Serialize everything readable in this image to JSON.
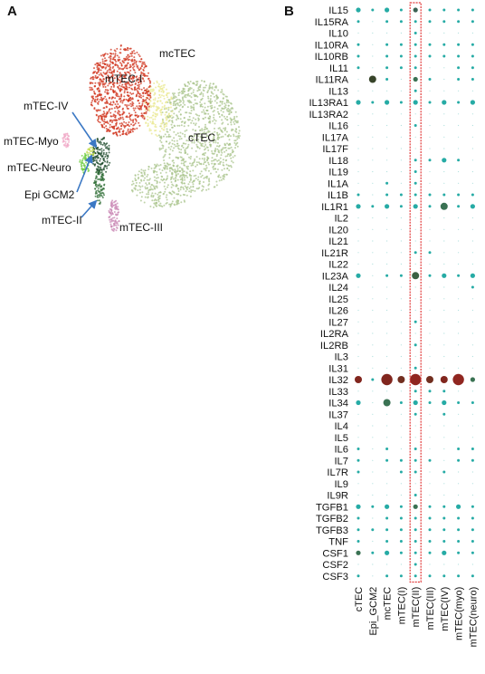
{
  "panels": {
    "a": "A",
    "b": "B"
  },
  "umap": {
    "labels": {
      "mctec": "mcTEC",
      "mtec_i": "mTEC-I",
      "mtec_iv": "mTEC-IV",
      "ctec": "cTEC",
      "mtec_myo": "mTEC-Myo",
      "mtec_neuro": "mTEC-Neuro",
      "epi_gcm2": "Epi GCM2",
      "mtec_ii": "mTEC-II",
      "mtec_iii": "mTEC-III"
    },
    "colors": {
      "mtec_i": "#d0341e",
      "mctec": "#e9e890",
      "ctec": "#a9c48c",
      "mtec_myo": "#f0a7c6",
      "mtec_neuro": "#6ccc3e",
      "epi_gcm2": "#c0d94a",
      "mtec_ii": "#2f6e36",
      "mtec_iii": "#c987b4",
      "mtec_iv": "#1c4a2a",
      "arrow": "#3b78c4"
    }
  },
  "chart_data": {
    "type": "dot",
    "genes": [
      "IL15",
      "IL15RA",
      "IL10",
      "IL10RA",
      "IL10RB",
      "IL11",
      "IL11RA",
      "IL13",
      "IL13RA1",
      "IL13RA2",
      "IL16",
      "IL17A",
      "IL17F",
      "IL18",
      "IL19",
      "IL1A",
      "IL1B",
      "IL1R1",
      "IL2",
      "IL20",
      "IL21",
      "IL21R",
      "IL22",
      "IL23A",
      "IL24",
      "IL25",
      "IL26",
      "IL27",
      "IL2RA",
      "IL2RB",
      "IL3",
      "IL31",
      "IL32",
      "IL33",
      "IL34",
      "IL37",
      "IL4",
      "IL5",
      "IL6",
      "IL7",
      "IL7R",
      "IL9",
      "IL9R",
      "TGFB1",
      "TGFB2",
      "TGFB3",
      "TNF",
      "CSF1",
      "CSF2",
      "CSF3"
    ],
    "clusters": [
      "cTEC",
      "Epi_GCM2",
      "mcTEC",
      "mTEC(I)",
      "mTEC(II)",
      "mTEC(III)",
      "mTEC(IV)",
      "mTEC(myo)",
      "mTEC(neuro)"
    ],
    "highlighted_cluster": "mTEC(II)",
    "size_levels": [
      0,
      1,
      2,
      3,
      4
    ],
    "dot_size": [
      [
        2,
        1,
        2,
        1,
        2,
        1,
        1,
        1,
        1
      ],
      [
        1,
        0,
        1,
        1,
        1,
        1,
        1,
        1,
        1
      ],
      [
        0,
        0,
        0,
        0,
        1,
        0,
        0,
        0,
        0
      ],
      [
        1,
        0,
        1,
        1,
        1,
        1,
        1,
        1,
        1
      ],
      [
        1,
        0,
        1,
        1,
        1,
        1,
        1,
        1,
        1
      ],
      [
        1,
        0,
        1,
        1,
        1,
        0,
        0,
        1,
        1
      ],
      [
        0,
        3,
        1,
        0,
        2,
        1,
        0,
        1,
        1
      ],
      [
        0,
        0,
        0,
        0,
        1,
        0,
        0,
        0,
        0
      ],
      [
        2,
        1,
        2,
        1,
        2,
        1,
        2,
        1,
        2
      ],
      [
        0,
        0,
        0,
        0,
        0,
        0,
        0,
        0,
        0
      ],
      [
        0,
        0,
        0,
        0,
        1,
        0,
        0,
        0,
        0
      ],
      [
        0,
        0,
        0,
        0,
        0,
        0,
        0,
        0,
        0
      ],
      [
        0,
        0,
        0,
        0,
        0,
        0,
        0,
        0,
        0
      ],
      [
        0,
        0,
        0,
        0,
        1,
        1,
        2,
        1,
        0
      ],
      [
        0,
        0,
        0,
        0,
        1,
        0,
        0,
        0,
        0
      ],
      [
        0,
        0,
        1,
        0,
        1,
        0,
        0,
        0,
        0
      ],
      [
        1,
        0,
        1,
        1,
        1,
        1,
        1,
        1,
        1
      ],
      [
        2,
        1,
        2,
        1,
        2,
        1,
        3,
        1,
        2
      ],
      [
        0,
        0,
        0,
        0,
        0,
        0,
        0,
        0,
        0
      ],
      [
        0,
        0,
        0,
        0,
        0,
        0,
        0,
        0,
        0
      ],
      [
        0,
        0,
        0,
        0,
        0,
        0,
        0,
        0,
        0
      ],
      [
        0,
        0,
        0,
        0,
        1,
        1,
        0,
        0,
        0
      ],
      [
        0,
        0,
        0,
        0,
        0,
        0,
        0,
        0,
        0
      ],
      [
        2,
        0,
        1,
        1,
        3,
        1,
        2,
        1,
        2
      ],
      [
        0,
        0,
        0,
        0,
        0,
        0,
        0,
        0,
        1
      ],
      [
        0,
        0,
        0,
        0,
        0,
        0,
        0,
        0,
        0
      ],
      [
        0,
        0,
        0,
        0,
        0,
        0,
        0,
        0,
        0
      ],
      [
        0,
        0,
        0,
        0,
        1,
        0,
        0,
        0,
        0
      ],
      [
        0,
        0,
        0,
        0,
        0,
        0,
        0,
        0,
        0
      ],
      [
        0,
        0,
        0,
        0,
        1,
        0,
        0,
        0,
        0
      ],
      [
        0,
        0,
        0,
        0,
        0,
        0,
        0,
        0,
        0
      ],
      [
        0,
        0,
        0,
        0,
        1,
        0,
        0,
        0,
        0
      ],
      [
        3,
        1,
        4,
        3,
        4,
        3,
        3,
        4,
        2
      ],
      [
        0,
        0,
        0,
        0,
        1,
        1,
        1,
        0,
        0
      ],
      [
        2,
        0,
        3,
        1,
        2,
        1,
        2,
        1,
        1
      ],
      [
        0,
        0,
        0,
        0,
        1,
        0,
        1,
        0,
        0
      ],
      [
        0,
        0,
        0,
        0,
        0,
        0,
        0,
        0,
        0
      ],
      [
        0,
        0,
        0,
        0,
        0,
        0,
        0,
        0,
        0
      ],
      [
        1,
        0,
        1,
        0,
        1,
        0,
        0,
        1,
        1
      ],
      [
        1,
        0,
        1,
        1,
        1,
        1,
        0,
        1,
        1
      ],
      [
        1,
        0,
        0,
        1,
        1,
        0,
        1,
        0,
        0
      ],
      [
        0,
        0,
        0,
        0,
        0,
        0,
        0,
        0,
        0
      ],
      [
        0,
        0,
        0,
        0,
        1,
        0,
        0,
        0,
        0
      ],
      [
        2,
        1,
        2,
        1,
        2,
        1,
        1,
        2,
        1
      ],
      [
        1,
        0,
        1,
        1,
        1,
        1,
        1,
        1,
        1
      ],
      [
        1,
        1,
        1,
        1,
        1,
        1,
        1,
        1,
        1
      ],
      [
        1,
        0,
        1,
        1,
        1,
        1,
        1,
        1,
        1
      ],
      [
        2,
        1,
        2,
        1,
        1,
        1,
        2,
        1,
        1
      ],
      [
        0,
        0,
        0,
        0,
        1,
        0,
        0,
        0,
        0
      ],
      [
        1,
        0,
        1,
        1,
        1,
        1,
        1,
        1,
        1
      ]
    ],
    "dot_color": [
      [
        "#1aa7a0",
        "#1aa7a0",
        "#1aa7a0",
        "#1aa7a0",
        "#2f5a4a",
        "#1aa7a0",
        "#1aa7a0",
        "#1aa7a0",
        "#1aa7a0"
      ],
      [
        "#1aa7a0",
        "#1aa7a0",
        "#1aa7a0",
        "#1aa7a0",
        "#1aa7a0",
        "#1aa7a0",
        "#1aa7a0",
        "#1aa7a0",
        "#1aa7a0"
      ],
      [
        "#1aa7a0",
        "#1aa7a0",
        "#1aa7a0",
        "#1aa7a0",
        "#1aa7a0",
        "#1aa7a0",
        "#1aa7a0",
        "#1aa7a0",
        "#1aa7a0"
      ],
      [
        "#1aa7a0",
        "#1aa7a0",
        "#1aa7a0",
        "#1aa7a0",
        "#1aa7a0",
        "#1aa7a0",
        "#1aa7a0",
        "#1aa7a0",
        "#1aa7a0"
      ],
      [
        "#1aa7a0",
        "#1aa7a0",
        "#1aa7a0",
        "#1aa7a0",
        "#1aa7a0",
        "#1aa7a0",
        "#1aa7a0",
        "#1aa7a0",
        "#1aa7a0"
      ],
      [
        "#1aa7a0",
        "#1aa7a0",
        "#1aa7a0",
        "#1aa7a0",
        "#1aa7a0",
        "#1aa7a0",
        "#1aa7a0",
        "#1aa7a0",
        "#1aa7a0"
      ],
      [
        "#1aa7a0",
        "#2c3a1e",
        "#1aa7a0",
        "#1aa7a0",
        "#2f6a4a",
        "#1aa7a0",
        "#1aa7a0",
        "#1aa7a0",
        "#1aa7a0"
      ],
      [
        "#1aa7a0",
        "#1aa7a0",
        "#1aa7a0",
        "#1aa7a0",
        "#1aa7a0",
        "#1aa7a0",
        "#1aa7a0",
        "#1aa7a0",
        "#1aa7a0"
      ],
      [
        "#1aa7a0",
        "#1aa7a0",
        "#1aa7a0",
        "#1aa7a0",
        "#1aa7a0",
        "#1aa7a0",
        "#1aa7a0",
        "#1aa7a0",
        "#1aa7a0"
      ],
      [
        "#1aa7a0",
        "#1aa7a0",
        "#1aa7a0",
        "#1aa7a0",
        "#1aa7a0",
        "#1aa7a0",
        "#1aa7a0",
        "#1aa7a0",
        "#1aa7a0"
      ],
      [
        "#1aa7a0",
        "#1aa7a0",
        "#1aa7a0",
        "#1aa7a0",
        "#1aa7a0",
        "#1aa7a0",
        "#1aa7a0",
        "#1aa7a0",
        "#1aa7a0"
      ],
      [
        "#1aa7a0",
        "#1aa7a0",
        "#1aa7a0",
        "#1aa7a0",
        "#1aa7a0",
        "#1aa7a0",
        "#1aa7a0",
        "#1aa7a0",
        "#1aa7a0"
      ],
      [
        "#1aa7a0",
        "#1aa7a0",
        "#1aa7a0",
        "#1aa7a0",
        "#1aa7a0",
        "#1aa7a0",
        "#1aa7a0",
        "#1aa7a0",
        "#1aa7a0"
      ],
      [
        "#1aa7a0",
        "#1aa7a0",
        "#1aa7a0",
        "#1aa7a0",
        "#1aa7a0",
        "#1aa7a0",
        "#1aa7a0",
        "#1aa7a0",
        "#1aa7a0"
      ],
      [
        "#1aa7a0",
        "#1aa7a0",
        "#1aa7a0",
        "#1aa7a0",
        "#1aa7a0",
        "#1aa7a0",
        "#1aa7a0",
        "#1aa7a0",
        "#1aa7a0"
      ],
      [
        "#1aa7a0",
        "#1aa7a0",
        "#1aa7a0",
        "#1aa7a0",
        "#1aa7a0",
        "#1aa7a0",
        "#1aa7a0",
        "#1aa7a0",
        "#1aa7a0"
      ],
      [
        "#1aa7a0",
        "#1aa7a0",
        "#1aa7a0",
        "#1aa7a0",
        "#1aa7a0",
        "#1aa7a0",
        "#1aa7a0",
        "#1aa7a0",
        "#1aa7a0"
      ],
      [
        "#1aa7a0",
        "#1aa7a0",
        "#1aa7a0",
        "#1aa7a0",
        "#1aa7a0",
        "#1aa7a0",
        "#2f6a4a",
        "#1aa7a0",
        "#1aa7a0"
      ],
      [
        "#1aa7a0",
        "#1aa7a0",
        "#1aa7a0",
        "#1aa7a0",
        "#1aa7a0",
        "#1aa7a0",
        "#1aa7a0",
        "#1aa7a0",
        "#1aa7a0"
      ],
      [
        "#1aa7a0",
        "#1aa7a0",
        "#1aa7a0",
        "#1aa7a0",
        "#1aa7a0",
        "#1aa7a0",
        "#1aa7a0",
        "#1aa7a0",
        "#1aa7a0"
      ],
      [
        "#1aa7a0",
        "#1aa7a0",
        "#1aa7a0",
        "#1aa7a0",
        "#1aa7a0",
        "#1aa7a0",
        "#1aa7a0",
        "#1aa7a0",
        "#1aa7a0"
      ],
      [
        "#1aa7a0",
        "#1aa7a0",
        "#1aa7a0",
        "#1aa7a0",
        "#1aa7a0",
        "#1aa7a0",
        "#1aa7a0",
        "#1aa7a0",
        "#1aa7a0"
      ],
      [
        "#1aa7a0",
        "#1aa7a0",
        "#1aa7a0",
        "#1aa7a0",
        "#1aa7a0",
        "#1aa7a0",
        "#1aa7a0",
        "#1aa7a0",
        "#1aa7a0"
      ],
      [
        "#1aa7a0",
        "#1aa7a0",
        "#1aa7a0",
        "#1aa7a0",
        "#2f5a3a",
        "#1aa7a0",
        "#1aa7a0",
        "#1aa7a0",
        "#1aa7a0"
      ],
      [
        "#1aa7a0",
        "#1aa7a0",
        "#1aa7a0",
        "#1aa7a0",
        "#1aa7a0",
        "#1aa7a0",
        "#1aa7a0",
        "#1aa7a0",
        "#1aa7a0"
      ],
      [
        "#1aa7a0",
        "#1aa7a0",
        "#1aa7a0",
        "#1aa7a0",
        "#1aa7a0",
        "#1aa7a0",
        "#1aa7a0",
        "#1aa7a0",
        "#1aa7a0"
      ],
      [
        "#1aa7a0",
        "#1aa7a0",
        "#1aa7a0",
        "#1aa7a0",
        "#1aa7a0",
        "#1aa7a0",
        "#1aa7a0",
        "#1aa7a0",
        "#1aa7a0"
      ],
      [
        "#1aa7a0",
        "#1aa7a0",
        "#1aa7a0",
        "#1aa7a0",
        "#1aa7a0",
        "#1aa7a0",
        "#1aa7a0",
        "#1aa7a0",
        "#1aa7a0"
      ],
      [
        "#1aa7a0",
        "#1aa7a0",
        "#1aa7a0",
        "#1aa7a0",
        "#1aa7a0",
        "#1aa7a0",
        "#1aa7a0",
        "#1aa7a0",
        "#1aa7a0"
      ],
      [
        "#1aa7a0",
        "#1aa7a0",
        "#1aa7a0",
        "#1aa7a0",
        "#1aa7a0",
        "#1aa7a0",
        "#1aa7a0",
        "#1aa7a0",
        "#1aa7a0"
      ],
      [
        "#1aa7a0",
        "#1aa7a0",
        "#1aa7a0",
        "#1aa7a0",
        "#1aa7a0",
        "#1aa7a0",
        "#1aa7a0",
        "#1aa7a0",
        "#1aa7a0"
      ],
      [
        "#1aa7a0",
        "#1aa7a0",
        "#1aa7a0",
        "#1aa7a0",
        "#1aa7a0",
        "#1aa7a0",
        "#1aa7a0",
        "#1aa7a0",
        "#1aa7a0"
      ],
      [
        "#7a1a12",
        "#1aa7a0",
        "#7a1a12",
        "#6a2414",
        "#8a1a14",
        "#6a2414",
        "#7a1a12",
        "#8a1a14",
        "#2f6a4a"
      ],
      [
        "#1aa7a0",
        "#1aa7a0",
        "#1aa7a0",
        "#1aa7a0",
        "#1aa7a0",
        "#1aa7a0",
        "#1aa7a0",
        "#1aa7a0",
        "#1aa7a0"
      ],
      [
        "#1aa7a0",
        "#1aa7a0",
        "#2f6a4a",
        "#1aa7a0",
        "#1aa7a0",
        "#1aa7a0",
        "#1aa7a0",
        "#1aa7a0",
        "#1aa7a0"
      ],
      [
        "#1aa7a0",
        "#1aa7a0",
        "#1aa7a0",
        "#1aa7a0",
        "#1aa7a0",
        "#1aa7a0",
        "#1aa7a0",
        "#1aa7a0",
        "#1aa7a0"
      ],
      [
        "#1aa7a0",
        "#1aa7a0",
        "#1aa7a0",
        "#1aa7a0",
        "#1aa7a0",
        "#1aa7a0",
        "#1aa7a0",
        "#1aa7a0",
        "#1aa7a0"
      ],
      [
        "#1aa7a0",
        "#1aa7a0",
        "#1aa7a0",
        "#1aa7a0",
        "#1aa7a0",
        "#1aa7a0",
        "#1aa7a0",
        "#1aa7a0",
        "#1aa7a0"
      ],
      [
        "#1aa7a0",
        "#1aa7a0",
        "#1aa7a0",
        "#1aa7a0",
        "#1aa7a0",
        "#1aa7a0",
        "#1aa7a0",
        "#1aa7a0",
        "#1aa7a0"
      ],
      [
        "#1aa7a0",
        "#1aa7a0",
        "#1aa7a0",
        "#1aa7a0",
        "#1aa7a0",
        "#1aa7a0",
        "#1aa7a0",
        "#1aa7a0",
        "#1aa7a0"
      ],
      [
        "#1aa7a0",
        "#1aa7a0",
        "#1aa7a0",
        "#1aa7a0",
        "#1aa7a0",
        "#1aa7a0",
        "#1aa7a0",
        "#1aa7a0",
        "#1aa7a0"
      ],
      [
        "#1aa7a0",
        "#1aa7a0",
        "#1aa7a0",
        "#1aa7a0",
        "#1aa7a0",
        "#1aa7a0",
        "#1aa7a0",
        "#1aa7a0",
        "#1aa7a0"
      ],
      [
        "#1aa7a0",
        "#1aa7a0",
        "#1aa7a0",
        "#1aa7a0",
        "#1aa7a0",
        "#1aa7a0",
        "#1aa7a0",
        "#1aa7a0",
        "#1aa7a0"
      ],
      [
        "#1aa7a0",
        "#1aa7a0",
        "#1aa7a0",
        "#1aa7a0",
        "#2f6a4a",
        "#1aa7a0",
        "#1aa7a0",
        "#1aa7a0",
        "#1aa7a0"
      ],
      [
        "#1aa7a0",
        "#1aa7a0",
        "#1aa7a0",
        "#1aa7a0",
        "#1aa7a0",
        "#1aa7a0",
        "#1aa7a0",
        "#1aa7a0",
        "#1aa7a0"
      ],
      [
        "#1aa7a0",
        "#1aa7a0",
        "#1aa7a0",
        "#1aa7a0",
        "#1aa7a0",
        "#1aa7a0",
        "#1aa7a0",
        "#1aa7a0",
        "#1aa7a0"
      ],
      [
        "#1aa7a0",
        "#1aa7a0",
        "#1aa7a0",
        "#1aa7a0",
        "#1aa7a0",
        "#1aa7a0",
        "#1aa7a0",
        "#1aa7a0",
        "#1aa7a0"
      ],
      [
        "#2f6a4a",
        "#1aa7a0",
        "#1aa7a0",
        "#1aa7a0",
        "#1aa7a0",
        "#1aa7a0",
        "#1aa7a0",
        "#1aa7a0",
        "#1aa7a0"
      ],
      [
        "#1aa7a0",
        "#1aa7a0",
        "#1aa7a0",
        "#1aa7a0",
        "#1aa7a0",
        "#1aa7a0",
        "#1aa7a0",
        "#1aa7a0",
        "#1aa7a0"
      ],
      [
        "#1aa7a0",
        "#1aa7a0",
        "#1aa7a0",
        "#1aa7a0",
        "#1aa7a0",
        "#1aa7a0",
        "#1aa7a0",
        "#1aa7a0",
        "#1aa7a0"
      ]
    ],
    "highlight_color": "#e23a3a",
    "grid": false
  }
}
